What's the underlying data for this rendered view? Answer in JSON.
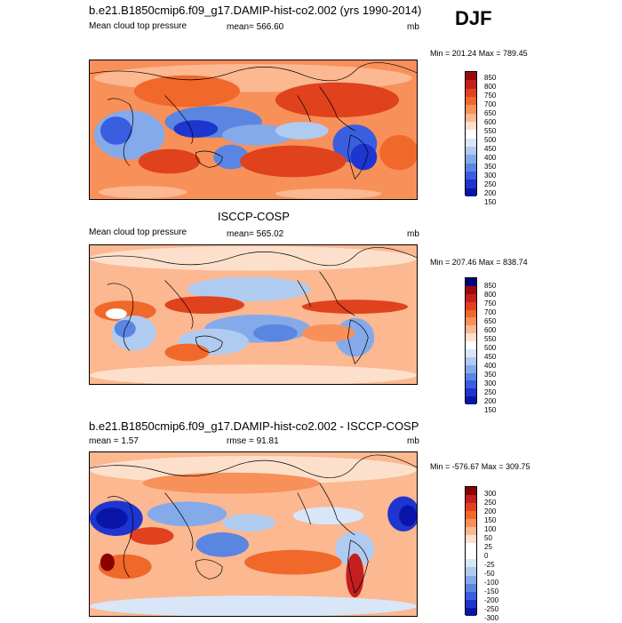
{
  "season": "DJF",
  "panels": [
    {
      "title": "b.e21.B1850cmip6.f09_g17.DAMIP-hist-co2.002 (yrs 1990-2014)",
      "left_label": "Mean cloud top pressure",
      "center_label": "mean= 566.60",
      "unit": "mb",
      "minmax": "Min = 201.24 Max = 789.45",
      "colorbar": [
        "850",
        "800",
        "750",
        "700",
        "650",
        "600",
        "550",
        "500",
        "450",
        "400",
        "350",
        "300",
        "250",
        "200",
        "150"
      ]
    },
    {
      "title": "ISCCP-COSP",
      "left_label": "Mean cloud top pressure",
      "center_label": "mean= 565.02",
      "unit": "mb",
      "minmax": "Min = 207.46 Max = 838.74",
      "colorbar": [
        "850",
        "800",
        "750",
        "700",
        "650",
        "600",
        "550",
        "500",
        "450",
        "400",
        "350",
        "300",
        "250",
        "200",
        "150"
      ]
    },
    {
      "title": "b.e21.B1850cmip6.f09_g17.DAMIP-hist-co2.002 - ISCCP-COSP",
      "left_label": "mean =   1.57",
      "center_label": "rmse =  91.81",
      "unit": "mb",
      "minmax": "Min = -576.67 Max = 309.75",
      "colorbar": [
        "300",
        "250",
        "200",
        "150",
        "100",
        "50",
        "25",
        "0",
        "-25",
        "-50",
        "-100",
        "-150",
        "-200",
        "-250",
        "-300"
      ]
    }
  ],
  "colors": {
    "abs_scale": [
      "#9b0a0a",
      "#c41e1e",
      "#e0421e",
      "#f0682a",
      "#f8905a",
      "#fbb891",
      "#fde0cc",
      "#ffffff",
      "#d8e6f8",
      "#b0cbf0",
      "#85aaea",
      "#5a86e2",
      "#3a5ee0",
      "#1e35d0",
      "#0a15a8",
      "#00007a"
    ],
    "diff_scale": [
      "#8b0000",
      "#c41e1e",
      "#e0421e",
      "#f0682a",
      "#f8905a",
      "#fbb891",
      "#fde0cc",
      "#ffffff",
      "#ffffff",
      "#d8e6f8",
      "#b0cbf0",
      "#85aaea",
      "#5a86e2",
      "#3a5ee0",
      "#1e35d0",
      "#0a15a8"
    ]
  }
}
